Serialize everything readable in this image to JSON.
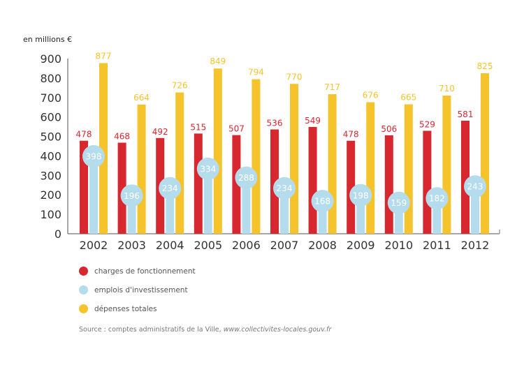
{
  "chart_data": {
    "type": "bar",
    "title": "",
    "ylabel": "en millions €",
    "xlabel": "",
    "ylim": [
      0,
      900
    ],
    "yticks": [
      0,
      100,
      200,
      300,
      400,
      500,
      600,
      700,
      800,
      900
    ],
    "grid": false,
    "legend_position": "bottom-left",
    "categories": [
      "2002",
      "2003",
      "2004",
      "2005",
      "2006",
      "2007",
      "2008",
      "2009",
      "2010",
      "2011",
      "2012"
    ],
    "series": [
      {
        "name": "charges de fonctionnement",
        "color": "#d7282f",
        "values": [
          478,
          468,
          492,
          515,
          507,
          536,
          549,
          478,
          506,
          529,
          581
        ]
      },
      {
        "name": "emplois d'investissement",
        "color": "#b5dcec",
        "values": [
          398,
          196,
          234,
          334,
          288,
          234,
          168,
          198,
          159,
          182,
          243
        ]
      },
      {
        "name": "dépenses totales",
        "color": "#f5c32c",
        "values": [
          877,
          664,
          726,
          849,
          794,
          770,
          717,
          676,
          665,
          710,
          825
        ]
      }
    ]
  },
  "source": {
    "prefix": "Source : comptes administratifs de la Ville, ",
    "link": "www.collectivites-locales.gouv.fr"
  }
}
